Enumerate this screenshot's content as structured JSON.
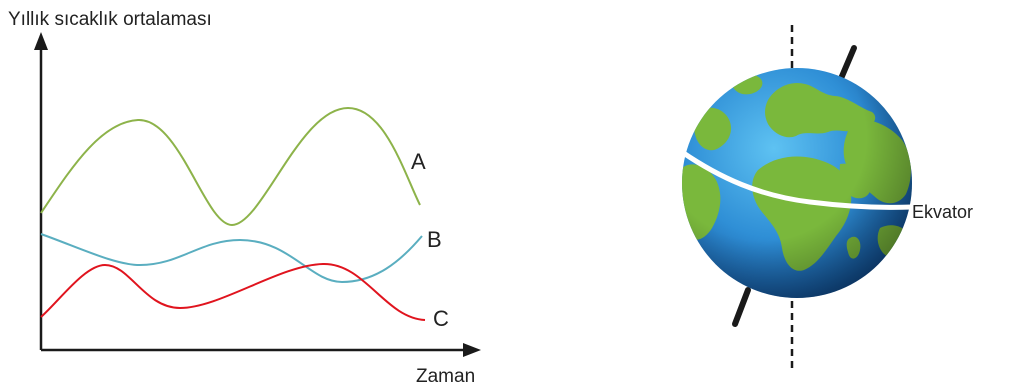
{
  "graph": {
    "y_axis_label": "Yıllık sıcaklık ortalaması",
    "x_axis_label": "Zaman",
    "curves": [
      {
        "label": "A",
        "color": "#8db34a"
      },
      {
        "label": "B",
        "color": "#5aaec0"
      },
      {
        "label": "C",
        "color": "#e0141e"
      }
    ]
  },
  "globe": {
    "equator_label": "Ekvator",
    "ocean_color": "#2f8fd6",
    "land_color": "#7ab83c",
    "equator_color": "#ffffff",
    "axis_color": "#1a1a1a"
  }
}
